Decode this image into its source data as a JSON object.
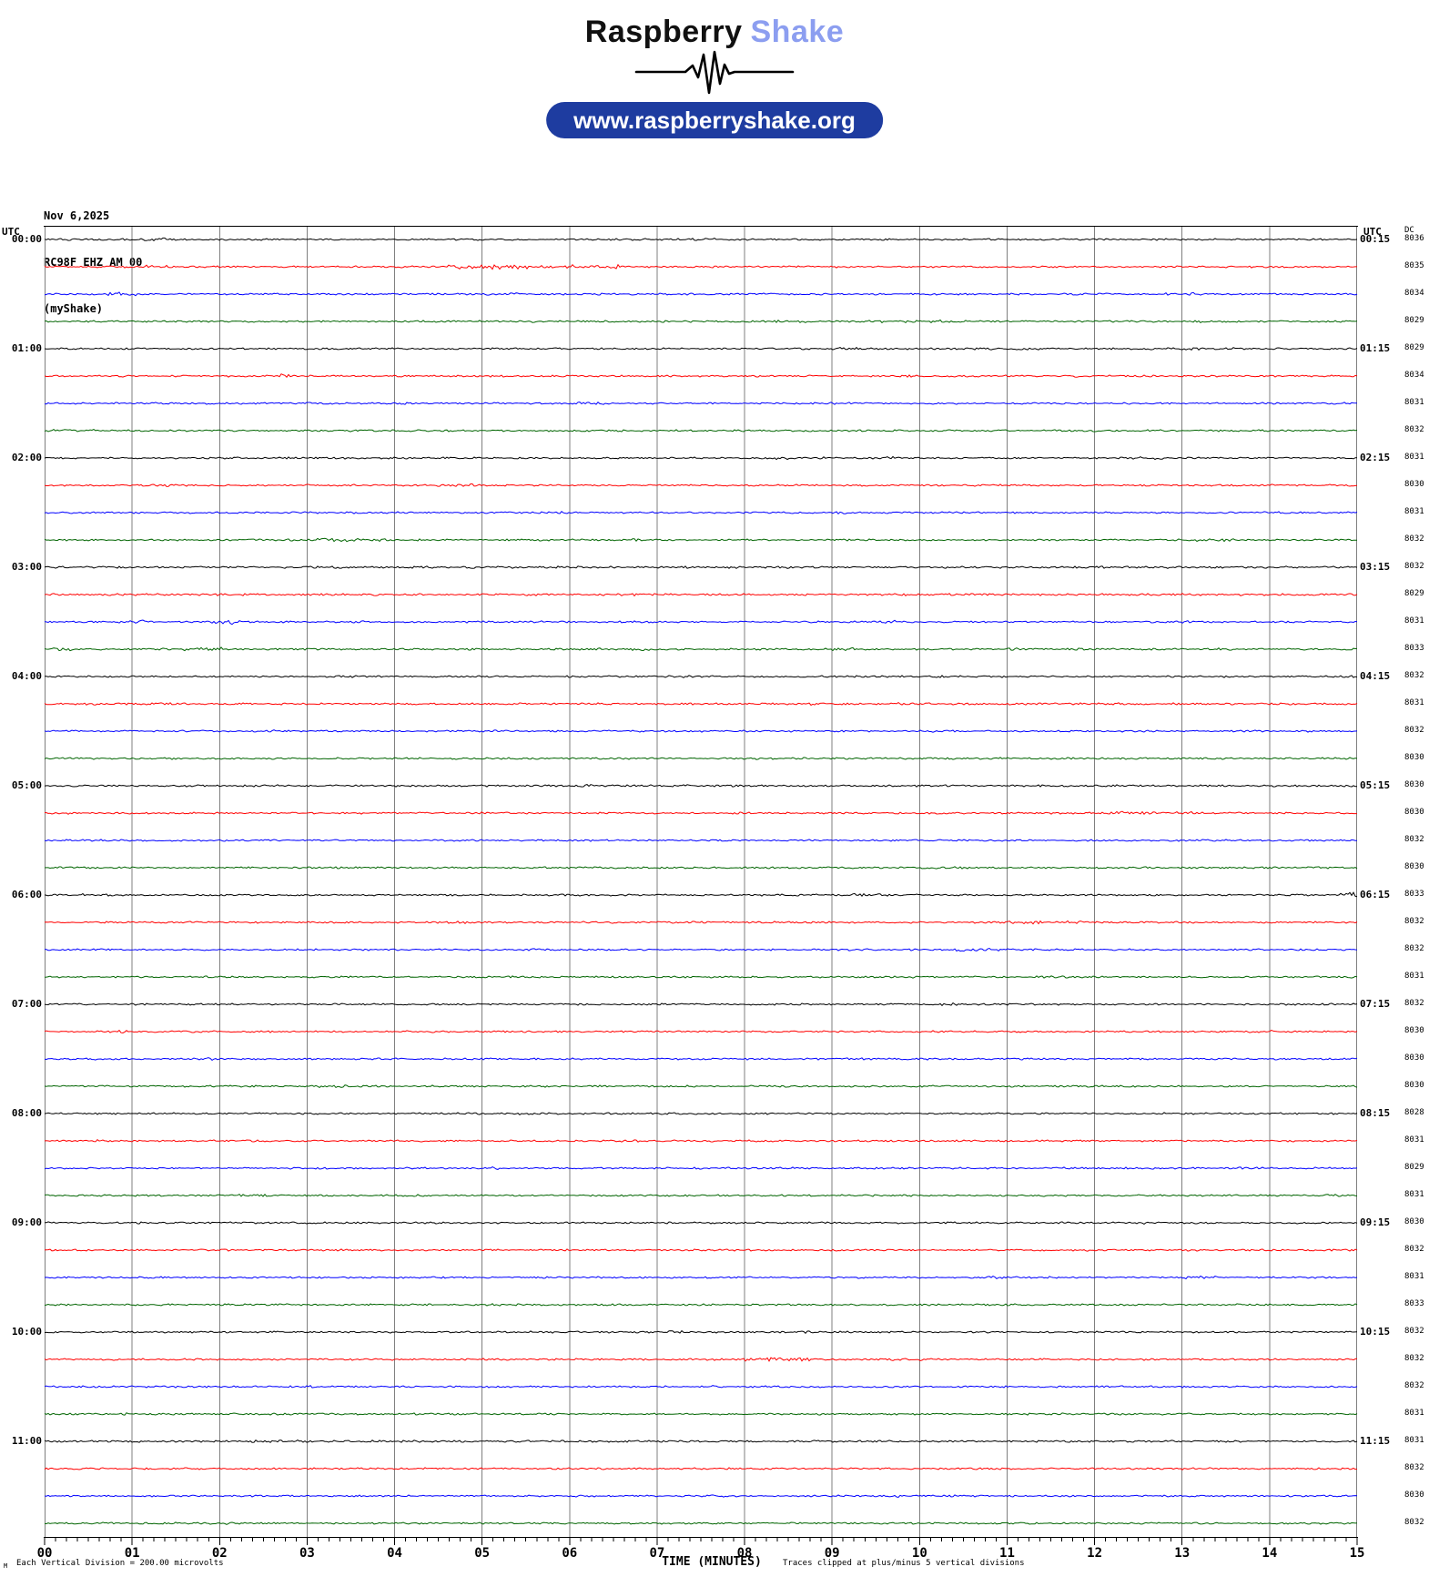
{
  "header": {
    "brand_primary": "Raspberry",
    "brand_secondary": "Shake",
    "url_label": "www.raspberryshake.org",
    "colors": {
      "brand_primary": "#111111",
      "brand_secondary": "#8C9EF0",
      "pill_bg": "#1E3CA0",
      "pill_text": "#FFFFFF"
    }
  },
  "station_info": {
    "date": "Nov 6,2025",
    "station_id": "RC98F EHZ AM 00",
    "station_name": "(myShake)"
  },
  "axis_headers": {
    "left_utc": "UTC",
    "right_utc": "UTC",
    "dc": "DC"
  },
  "footer": {
    "x_title": "TIME (MINUTES)",
    "clip_note": "Traces clipped at plus/minus 5 vertical divisions",
    "scale_note": "Each Vertical Division =  200.00 microvolts",
    "scale_glyph": "M"
  },
  "chart_data": {
    "type": "line",
    "subtype": "seismogram-helicorder",
    "title": "RC98F EHZ AM 00 helicorder, Nov 6,2025, starting 00:00 UTC",
    "xlabel": "TIME (MINUTES)",
    "x_range_minutes": [
      0,
      15
    ],
    "minutes_per_row": 15,
    "x_ticks": [
      "00",
      "01",
      "02",
      "03",
      "04",
      "05",
      "06",
      "07",
      "08",
      "09",
      "10",
      "11",
      "12",
      "13",
      "14",
      "15"
    ],
    "minor_ticks_per_minute": 8,
    "grid": true,
    "grid_color": "#7F7F7F",
    "microvolts_per_division": 200.0,
    "clip_divisions": 5,
    "trace_colors": {
      "black": "#000000",
      "red": "#FF0000",
      "blue": "#0000FF",
      "green": "#006400"
    },
    "rows": [
      {
        "start": "00:00",
        "color": "black",
        "dc": 8036,
        "left_label": "00:00",
        "right_label": "00:15",
        "bursts": [
          [
            1.1,
            1.5,
            1.7
          ],
          [
            7.4,
            7.7,
            1.4
          ]
        ]
      },
      {
        "start": "00:15",
        "color": "red",
        "dc": 8035,
        "bursts": [
          [
            1.1,
            1.4,
            1.7
          ],
          [
            4.6,
            6.6,
            2.6
          ],
          [
            9.0,
            9.3,
            1.5
          ]
        ]
      },
      {
        "start": "00:30",
        "color": "blue",
        "dc": 8034,
        "bursts": [
          [
            0.7,
            1.05,
            2.0
          ],
          [
            12.8,
            13.2,
            1.6
          ]
        ]
      },
      {
        "start": "00:45",
        "color": "green",
        "dc": 8029,
        "bursts": [
          [
            9.3,
            10.6,
            1.5
          ],
          [
            13.0,
            13.3,
            1.4
          ]
        ]
      },
      {
        "start": "01:00",
        "color": "black",
        "dc": 8029,
        "left_label": "01:00",
        "right_label": "01:15",
        "bursts": [
          [
            9.0,
            9.3,
            1.5
          ],
          [
            11.0,
            11.4,
            1.6
          ],
          [
            12.8,
            13.6,
            1.5
          ]
        ]
      },
      {
        "start": "01:15",
        "color": "red",
        "dc": 8034,
        "bursts": [
          [
            2.6,
            2.8,
            2.2
          ],
          [
            9.8,
            10.1,
            1.4
          ]
        ]
      },
      {
        "start": "01:30",
        "color": "blue",
        "dc": 8031,
        "bursts": [
          [
            3.8,
            4.15,
            1.6
          ],
          [
            6.0,
            6.4,
            1.5
          ],
          [
            14.6,
            15.0,
            1.5
          ]
        ]
      },
      {
        "start": "01:45",
        "color": "green",
        "dc": 8032,
        "bursts": [
          [
            0.0,
            0.6,
            1.6
          ],
          [
            4.0,
            4.3,
            1.4
          ]
        ]
      },
      {
        "start": "02:00",
        "color": "black",
        "dc": 8031,
        "left_label": "02:00",
        "right_label": "02:15",
        "bursts": [
          [
            4.4,
            4.6,
            1.4
          ],
          [
            9.5,
            9.9,
            1.6
          ],
          [
            12.4,
            12.9,
            1.7
          ]
        ]
      },
      {
        "start": "02:15",
        "color": "red",
        "dc": 8030,
        "bursts": [
          [
            1.1,
            1.5,
            1.5
          ],
          [
            4.85,
            5.05,
            2.0
          ],
          [
            10.5,
            10.75,
            1.8
          ]
        ]
      },
      {
        "start": "02:30",
        "color": "blue",
        "dc": 8031,
        "bursts": [
          [
            3.4,
            3.65,
            1.6
          ],
          [
            5.8,
            6.15,
            1.6
          ]
        ]
      },
      {
        "start": "02:45",
        "color": "green",
        "dc": 8032,
        "bursts": [
          [
            2.8,
            3.9,
            1.8
          ]
        ]
      },
      {
        "start": "03:00",
        "color": "black",
        "dc": 8032,
        "left_label": "03:00",
        "right_label": "03:15",
        "bursts": [
          [
            0.0,
            15.0,
            1.15
          ]
        ]
      },
      {
        "start": "03:15",
        "color": "red",
        "dc": 8029,
        "bursts": [
          [
            0.0,
            15.0,
            1.2
          ]
        ]
      },
      {
        "start": "03:30",
        "color": "blue",
        "dc": 8031,
        "bursts": [
          [
            0.85,
            1.15,
            2.3
          ],
          [
            1.9,
            2.25,
            2.5
          ],
          [
            9.6,
            9.85,
            1.8
          ],
          [
            12.9,
            13.2,
            1.5
          ]
        ]
      },
      {
        "start": "03:45",
        "color": "green",
        "dc": 8033,
        "bursts": [
          [
            0.05,
            0.3,
            1.8
          ],
          [
            1.5,
            2.05,
            2.2
          ],
          [
            6.7,
            7.05,
            1.7
          ],
          [
            9.0,
            9.25,
            1.6
          ],
          [
            11.0,
            11.25,
            1.5
          ],
          [
            13.3,
            13.6,
            1.4
          ]
        ]
      },
      {
        "start": "04:00",
        "color": "black",
        "dc": 8032,
        "left_label": "04:00",
        "right_label": "04:15",
        "bursts": [
          [
            7.3,
            7.42,
            1.9
          ]
        ]
      },
      {
        "start": "04:15",
        "color": "red",
        "dc": 8031,
        "bursts": [
          [
            0.0,
            15.0,
            1.1
          ]
        ]
      },
      {
        "start": "04:30",
        "color": "blue",
        "dc": 8032,
        "bursts": [
          [
            2.5,
            2.8,
            1.5
          ]
        ]
      },
      {
        "start": "04:45",
        "color": "green",
        "dc": 8030,
        "bursts": []
      },
      {
        "start": "05:00",
        "color": "black",
        "dc": 8030,
        "left_label": "05:00",
        "right_label": "05:15",
        "bursts": [
          [
            0.0,
            15.0,
            1.1
          ]
        ]
      },
      {
        "start": "05:15",
        "color": "red",
        "dc": 8030,
        "bursts": [
          [
            12.2,
            13.2,
            1.7
          ]
        ]
      },
      {
        "start": "05:30",
        "color": "blue",
        "dc": 8032,
        "bursts": []
      },
      {
        "start": "05:45",
        "color": "green",
        "dc": 8030,
        "bursts": []
      },
      {
        "start": "06:00",
        "color": "black",
        "dc": 8033,
        "left_label": "06:00",
        "right_label": "06:15",
        "bursts": [
          [
            9.2,
            9.55,
            2.0
          ],
          [
            14.8,
            15.0,
            3.2
          ]
        ]
      },
      {
        "start": "06:15",
        "color": "red",
        "dc": 8032,
        "bursts": [
          [
            11.0,
            11.45,
            1.6
          ]
        ]
      },
      {
        "start": "06:30",
        "color": "blue",
        "dc": 8032,
        "bursts": [
          [
            10.4,
            10.9,
            1.6
          ]
        ]
      },
      {
        "start": "06:45",
        "color": "green",
        "dc": 8031,
        "bursts": []
      },
      {
        "start": "07:00",
        "color": "black",
        "dc": 8032,
        "left_label": "07:00",
        "right_label": "07:15",
        "bursts": [
          [
            10.2,
            10.4,
            1.4
          ]
        ]
      },
      {
        "start": "07:15",
        "color": "red",
        "dc": 8030,
        "bursts": []
      },
      {
        "start": "07:30",
        "color": "blue",
        "dc": 8030,
        "bursts": []
      },
      {
        "start": "07:45",
        "color": "green",
        "dc": 8030,
        "bursts": [
          [
            3.1,
            3.5,
            1.5
          ]
        ]
      },
      {
        "start": "08:00",
        "color": "black",
        "dc": 8028,
        "left_label": "08:00",
        "right_label": "08:15",
        "bursts": []
      },
      {
        "start": "08:15",
        "color": "red",
        "dc": 8031,
        "bursts": [
          [
            11.3,
            11.5,
            1.7
          ]
        ]
      },
      {
        "start": "08:30",
        "color": "blue",
        "dc": 8029,
        "bursts": [
          [
            11.7,
            11.95,
            1.8
          ]
        ]
      },
      {
        "start": "08:45",
        "color": "green",
        "dc": 8031,
        "bursts": []
      },
      {
        "start": "09:00",
        "color": "black",
        "dc": 8030,
        "left_label": "09:00",
        "right_label": "09:15",
        "bursts": []
      },
      {
        "start": "09:15",
        "color": "red",
        "dc": 8032,
        "bursts": []
      },
      {
        "start": "09:30",
        "color": "blue",
        "dc": 8031,
        "bursts": [
          [
            13.0,
            13.4,
            1.5
          ]
        ]
      },
      {
        "start": "09:45",
        "color": "green",
        "dc": 8033,
        "bursts": [
          [
            2.2,
            2.35,
            1.6
          ]
        ]
      },
      {
        "start": "10:00",
        "color": "black",
        "dc": 8032,
        "left_label": "10:00",
        "right_label": "10:15",
        "bursts": []
      },
      {
        "start": "10:15",
        "color": "red",
        "dc": 8032,
        "bursts": [
          [
            8.0,
            8.75,
            2.1
          ]
        ]
      },
      {
        "start": "10:30",
        "color": "blue",
        "dc": 8032,
        "bursts": []
      },
      {
        "start": "10:45",
        "color": "green",
        "dc": 8031,
        "bursts": []
      },
      {
        "start": "11:00",
        "color": "black",
        "dc": 8031,
        "left_label": "11:00",
        "right_label": "11:15",
        "bursts": [
          [
            0.0,
            15.0,
            1.1
          ]
        ]
      },
      {
        "start": "11:15",
        "color": "red",
        "dc": 8032,
        "bursts": [
          [
            1.0,
            1.3,
            1.4
          ]
        ]
      },
      {
        "start": "11:30",
        "color": "blue",
        "dc": 8030,
        "bursts": []
      },
      {
        "start": "11:45",
        "color": "green",
        "dc": 8032,
        "bursts": [
          [
            2.0,
            2.3,
            1.4
          ]
        ]
      }
    ]
  }
}
